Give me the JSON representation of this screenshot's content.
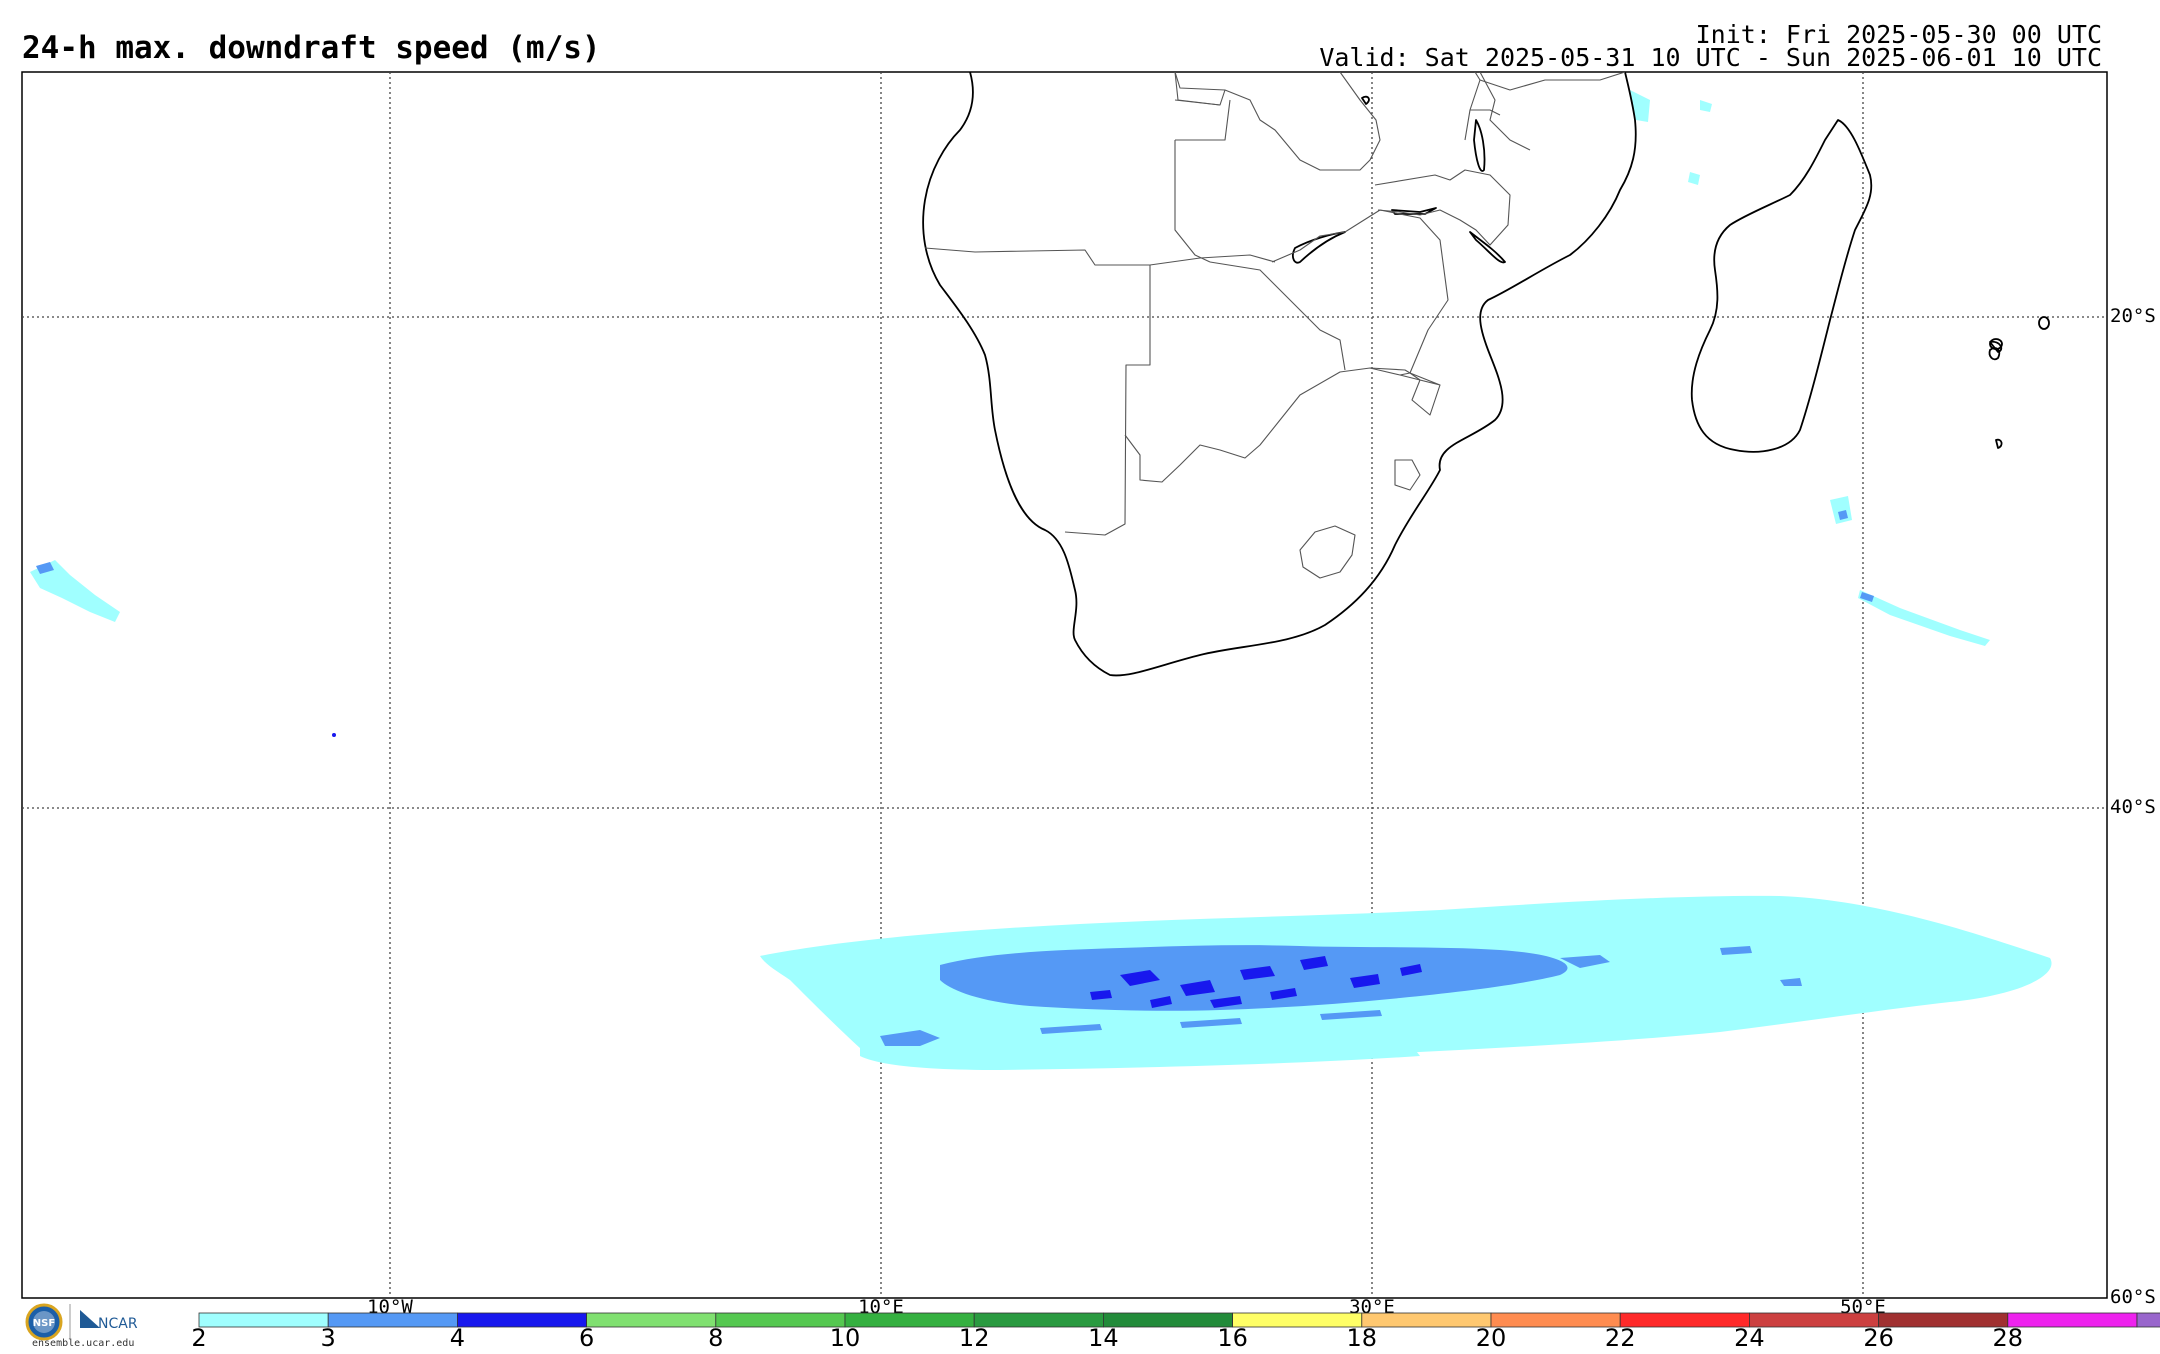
{
  "header": {
    "title": "24-h max. downdraft speed (m/s)",
    "init": "Init: Fri 2025-05-30 00 UTC",
    "valid": "Valid: Sat 2025-05-31 10 UTC - Sun 2025-06-01 10 UTC"
  },
  "map": {
    "lat_labels": [
      "20°S",
      "40°S",
      "60°S"
    ],
    "lon_labels": [
      "10°W",
      "10°E",
      "30°E",
      "50°E"
    ]
  },
  "colorbar": {
    "ticks": [
      "2",
      "3",
      "4",
      "6",
      "8",
      "10",
      "12",
      "14",
      "16",
      "18",
      "20",
      "22",
      "24",
      "26",
      "28"
    ],
    "colors": [
      "#a0ffff",
      "#5599f5",
      "#1818ee",
      "#80e070",
      "#55c850",
      "#35b040",
      "#2a9a40",
      "#228b3a",
      "#ffff66",
      "#ffc870",
      "#ff8c50",
      "#ff2a2a",
      "#cc4040",
      "#a03030",
      "#ee22ee",
      "#9966cc"
    ]
  },
  "branding": {
    "nsf": "NSF",
    "ncar": "NCAR",
    "url": "ensemble.ucar.edu"
  },
  "icons": [
    "nsf-logo-icon",
    "ncar-logo-icon"
  ]
}
